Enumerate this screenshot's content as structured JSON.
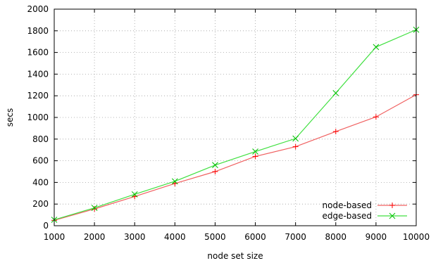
{
  "chart_data": {
    "type": "line",
    "title": "",
    "xlabel": "node set size",
    "ylabel": "secs",
    "xlim": [
      1000,
      10000
    ],
    "ylim": [
      0,
      2000
    ],
    "x_ticks": [
      1000,
      2000,
      3000,
      4000,
      5000,
      6000,
      7000,
      8000,
      9000,
      10000
    ],
    "y_ticks": [
      0,
      200,
      400,
      600,
      800,
      1000,
      1200,
      1400,
      1600,
      1800,
      2000
    ],
    "x": [
      1000,
      2000,
      3000,
      4000,
      5000,
      6000,
      7000,
      8000,
      9000,
      10000
    ],
    "grid": true,
    "legend_position": "bottom-right",
    "series": [
      {
        "name": "node-based",
        "color": "#ff0000",
        "line_color": "#f06060",
        "marker": "plus",
        "values": [
          50,
          155,
          270,
          390,
          500,
          640,
          730,
          870,
          1005,
          1210
        ]
      },
      {
        "name": "edge-based",
        "color": "#00c000",
        "line_color": "#40e040",
        "marker": "cross",
        "values": [
          55,
          165,
          290,
          410,
          560,
          685,
          805,
          1225,
          1650,
          1810
        ]
      }
    ]
  }
}
